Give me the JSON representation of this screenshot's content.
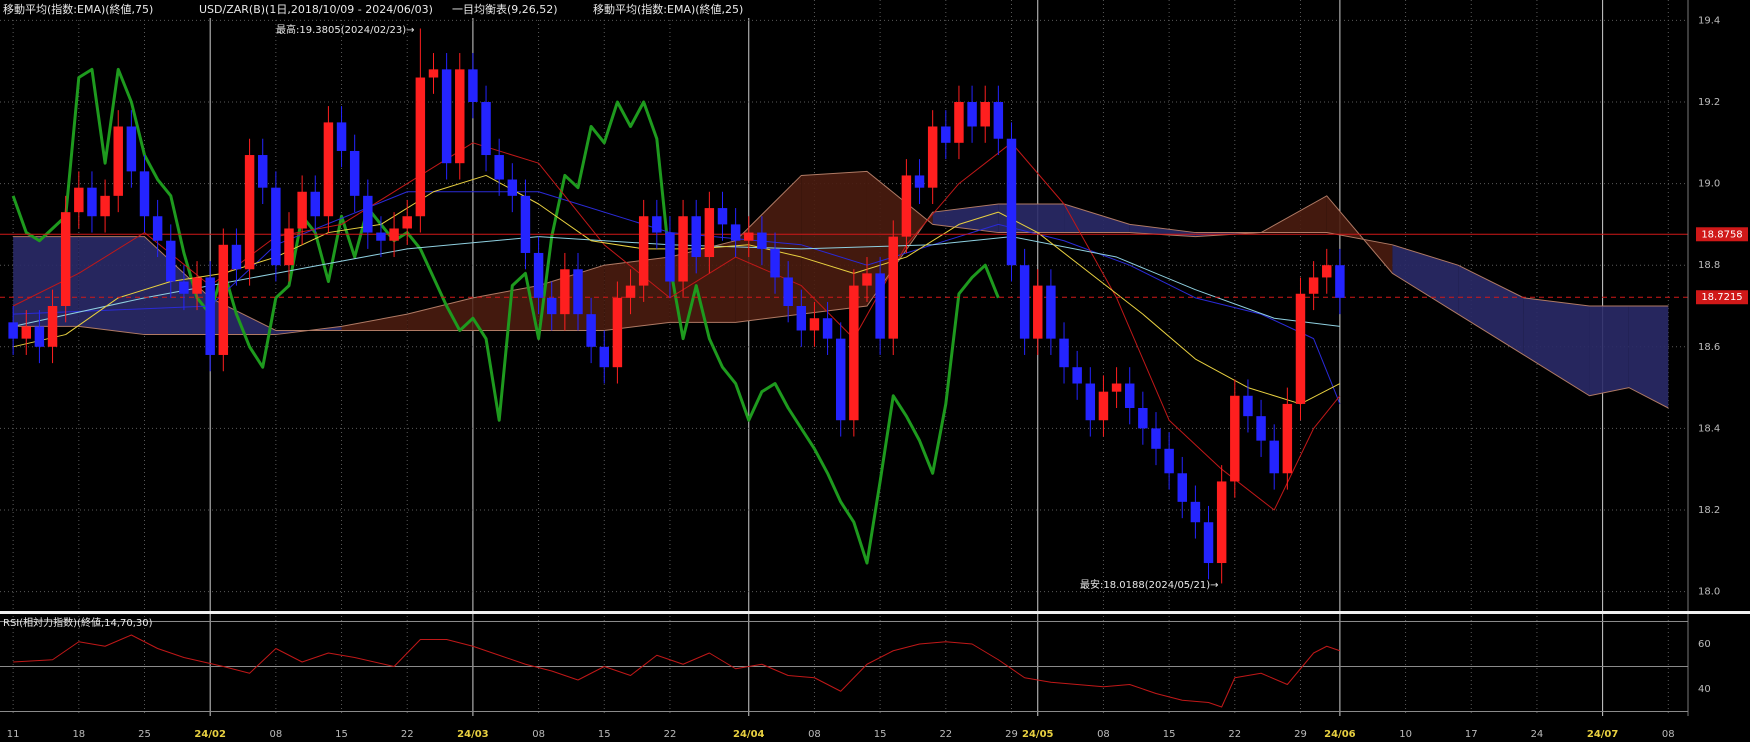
{
  "chart_data": [
    {
      "type": "candlestick",
      "title": "USD/ZAR(B)(1日,2018/10/09 - 2024/06/03)",
      "indicators": [
        "移動平均(指数:EMA)(終値,75)",
        "一目均衡表(9,26,52)",
        "移動平均(指数:EMA)(終値,25)"
      ],
      "open": [
        18.66,
        18.62,
        18.65,
        18.6,
        18.7,
        18.93,
        18.99,
        18.92,
        18.97,
        19.14,
        19.03,
        18.92,
        18.86,
        18.76,
        18.73,
        18.77,
        18.58,
        18.85,
        18.79,
        19.07,
        18.99,
        18.8,
        18.89,
        18.98,
        18.92,
        19.15,
        19.08,
        18.97,
        18.88,
        18.86,
        18.89,
        18.92,
        19.26,
        19.28,
        19.05,
        19.28,
        19.2,
        19.07,
        19.01,
        18.97,
        18.83,
        18.72,
        18.68,
        18.79,
        18.68,
        18.6,
        18.55,
        18.72,
        18.75,
        18.92,
        18.88,
        18.76,
        18.92,
        18.82,
        18.94,
        18.9,
        18.86,
        18.88,
        18.84,
        18.77,
        18.7,
        18.64,
        18.67,
        18.62,
        18.42,
        18.75,
        18.78,
        18.62,
        18.87,
        19.02,
        18.99,
        19.14,
        19.1,
        19.2,
        19.14,
        19.2,
        19.11,
        18.8,
        18.62,
        18.75,
        18.62,
        18.55,
        18.51,
        18.42,
        18.49,
        18.51,
        18.45,
        18.4,
        18.35,
        18.29,
        18.22,
        18.17,
        18.07,
        18.27,
        18.48,
        18.43,
        18.37,
        18.29,
        18.46,
        18.73,
        18.77,
        18.8
      ],
      "high": [
        18.7,
        18.69,
        18.69,
        18.74,
        18.97,
        19.03,
        19.03,
        19.01,
        19.18,
        19.18,
        19.07,
        18.96,
        18.9,
        18.8,
        18.81,
        18.81,
        18.89,
        18.89,
        19.11,
        19.11,
        19.03,
        18.93,
        19.02,
        19.02,
        19.19,
        19.19,
        19.12,
        19.01,
        18.92,
        18.93,
        18.96,
        19.38,
        19.32,
        19.32,
        19.32,
        19.32,
        19.24,
        19.11,
        19.05,
        19.01,
        18.87,
        18.76,
        18.83,
        18.83,
        18.72,
        18.64,
        18.76,
        18.79,
        18.96,
        18.96,
        18.92,
        18.96,
        18.96,
        18.98,
        18.98,
        18.94,
        18.92,
        18.92,
        18.88,
        18.81,
        18.74,
        18.71,
        18.71,
        18.66,
        18.79,
        18.82,
        18.82,
        18.91,
        19.06,
        19.06,
        19.18,
        19.18,
        19.24,
        19.24,
        19.24,
        19.24,
        19.15,
        18.84,
        18.79,
        18.79,
        18.66,
        18.59,
        18.55,
        18.53,
        18.55,
        18.55,
        18.49,
        18.44,
        18.39,
        18.33,
        18.26,
        18.21,
        18.31,
        18.52,
        18.52,
        18.47,
        18.41,
        18.5,
        18.77,
        18.81,
        18.84,
        18.84
      ],
      "low": [
        18.58,
        18.58,
        18.56,
        18.56,
        18.66,
        18.89,
        18.88,
        18.88,
        18.93,
        18.99,
        18.88,
        18.82,
        18.72,
        18.69,
        18.69,
        18.54,
        18.54,
        18.75,
        18.75,
        18.95,
        18.76,
        18.76,
        18.85,
        18.88,
        18.88,
        19.04,
        18.93,
        18.84,
        18.82,
        18.82,
        18.85,
        18.88,
        19.22,
        19.01,
        19.01,
        19.16,
        19.03,
        18.97,
        18.93,
        18.79,
        18.68,
        18.64,
        18.64,
        18.64,
        18.56,
        18.51,
        18.51,
        18.68,
        18.71,
        18.84,
        18.72,
        18.72,
        18.78,
        18.78,
        18.86,
        18.82,
        18.82,
        18.8,
        18.73,
        18.66,
        18.6,
        18.6,
        18.58,
        18.38,
        18.38,
        18.71,
        18.58,
        18.58,
        18.83,
        18.95,
        18.95,
        19.06,
        19.06,
        19.1,
        19.1,
        19.07,
        18.76,
        18.58,
        18.58,
        18.58,
        18.51,
        18.47,
        18.38,
        18.38,
        18.45,
        18.41,
        18.36,
        18.31,
        18.25,
        18.18,
        18.13,
        18.03,
        18.02,
        18.23,
        18.39,
        18.33,
        18.25,
        18.25,
        18.42,
        18.69,
        18.73,
        18.68
      ],
      "close": [
        18.62,
        18.65,
        18.6,
        18.7,
        18.93,
        18.99,
        18.92,
        18.97,
        19.14,
        19.03,
        18.92,
        18.86,
        18.76,
        18.73,
        18.77,
        18.58,
        18.85,
        18.79,
        19.07,
        18.99,
        18.8,
        18.89,
        18.98,
        18.92,
        19.15,
        19.08,
        18.97,
        18.88,
        18.86,
        18.89,
        18.92,
        19.26,
        19.28,
        19.05,
        19.28,
        19.2,
        19.07,
        19.01,
        18.97,
        18.83,
        18.72,
        18.68,
        18.79,
        18.68,
        18.6,
        18.55,
        18.72,
        18.75,
        18.92,
        18.88,
        18.76,
        18.92,
        18.82,
        18.94,
        18.9,
        18.86,
        18.88,
        18.84,
        18.77,
        18.7,
        18.64,
        18.67,
        18.62,
        18.42,
        18.75,
        18.78,
        18.62,
        18.87,
        19.02,
        18.99,
        19.14,
        19.1,
        19.2,
        19.14,
        19.2,
        19.11,
        18.8,
        18.62,
        18.75,
        18.62,
        18.55,
        18.51,
        18.42,
        18.49,
        18.51,
        18.45,
        18.4,
        18.35,
        18.29,
        18.22,
        18.17,
        18.07,
        18.27,
        18.48,
        18.43,
        18.37,
        18.29,
        18.46,
        18.73,
        18.77,
        18.8,
        18.72
      ],
      "up_color": "#ff1f1f",
      "down_color": "#2424ff",
      "cloud": {
        "x": [
          0,
          5,
          10,
          15,
          20,
          25,
          30,
          35,
          40,
          45,
          50,
          55,
          60,
          65,
          70,
          75,
          80,
          85,
          90,
          95,
          100,
          105,
          110,
          115,
          120,
          123,
          126
        ],
        "span_a": [
          18.65,
          18.65,
          18.63,
          18.63,
          18.63,
          18.65,
          18.68,
          18.72,
          18.75,
          18.8,
          18.82,
          18.86,
          19.02,
          19.03,
          18.9,
          18.88,
          18.88,
          18.88,
          18.87,
          18.88,
          18.97,
          18.78,
          18.68,
          18.58,
          18.48,
          18.5,
          18.45
        ],
        "span_b": [
          18.87,
          18.87,
          18.87,
          18.72,
          18.64,
          18.64,
          18.64,
          18.64,
          18.64,
          18.64,
          18.66,
          18.66,
          18.68,
          18.7,
          18.93,
          18.95,
          18.95,
          18.9,
          18.88,
          18.88,
          18.88,
          18.85,
          18.8,
          18.72,
          18.7,
          18.7,
          18.7
        ],
        "up_color": "#4a1c10",
        "down_color": "#2a2a68",
        "edge_color": "#b07a64"
      },
      "overlays": [
        {
          "color": "#1e9a1e",
          "width": 3,
          "values": [
            18.97,
            18.88,
            18.86,
            18.89,
            18.92,
            19.26,
            19.28,
            19.05,
            19.28,
            19.2,
            19.07,
            19.01,
            18.97,
            18.83,
            18.72,
            18.68,
            18.79,
            18.68,
            18.6,
            18.55,
            18.72,
            18.75,
            18.92,
            18.88,
            18.76,
            18.92,
            18.82,
            18.94,
            18.9,
            18.86,
            18.88,
            18.84,
            18.77,
            18.7,
            18.64,
            18.67,
            18.62,
            18.42,
            18.75,
            18.78,
            18.62,
            18.87,
            19.02,
            18.99,
            19.14,
            19.1,
            19.2,
            19.14,
            19.2,
            19.11,
            18.8,
            18.62,
            18.75,
            18.62,
            18.55,
            18.51,
            18.42,
            18.49,
            18.51,
            18.45,
            18.4,
            18.35,
            18.29,
            18.22,
            18.17,
            18.07,
            18.27,
            18.48,
            18.43,
            18.37,
            18.29,
            18.46,
            18.73,
            18.77,
            18.8,
            18.72,
            null,
            null,
            null,
            null,
            null,
            null,
            null,
            null,
            null,
            null,
            null,
            null,
            null,
            null,
            null,
            null,
            null,
            null,
            null,
            null,
            null,
            null,
            null,
            null,
            null,
            null
          ]
        },
        {
          "color": "#2a2ad8",
          "width": 1,
          "x": [
            0,
            15,
            20,
            30,
            40,
            50,
            60,
            65,
            70,
            75,
            80,
            85,
            90,
            95,
            99,
            101
          ],
          "values": [
            18.68,
            18.7,
            18.85,
            18.98,
            18.98,
            18.88,
            18.85,
            18.8,
            18.85,
            18.9,
            18.86,
            18.8,
            18.72,
            18.68,
            18.62,
            18.46
          ]
        },
        {
          "color": "#c01818",
          "width": 1,
          "x": [
            0,
            5,
            10,
            15,
            20,
            25,
            30,
            35,
            40,
            45,
            50,
            55,
            60,
            64,
            68,
            72,
            76,
            80,
            84,
            88,
            92,
            96,
            99,
            101
          ],
          "values": [
            18.7,
            18.78,
            18.88,
            18.75,
            18.87,
            18.9,
            19.0,
            19.1,
            19.05,
            18.85,
            18.72,
            18.82,
            18.75,
            18.62,
            18.85,
            19.0,
            19.1,
            18.95,
            18.72,
            18.42,
            18.3,
            18.2,
            18.4,
            18.48
          ]
        },
        {
          "color": "#8fd0e0",
          "width": 1,
          "x": [
            0,
            10,
            20,
            30,
            40,
            50,
            60,
            70,
            76,
            84,
            90,
            96,
            101
          ],
          "values": [
            18.65,
            18.72,
            18.78,
            18.84,
            18.87,
            18.85,
            18.84,
            18.85,
            18.87,
            18.82,
            18.74,
            18.67,
            18.65
          ]
        },
        {
          "color": "#e8d040",
          "width": 1,
          "x": [
            0,
            4,
            8,
            12,
            16,
            20,
            24,
            28,
            32,
            36,
            40,
            44,
            48,
            52,
            56,
            60,
            64,
            68,
            72,
            75,
            78,
            82,
            86,
            90,
            94,
            98,
            101
          ],
          "values": [
            18.6,
            18.63,
            18.72,
            18.76,
            18.78,
            18.82,
            18.88,
            18.9,
            18.98,
            19.02,
            18.95,
            18.86,
            18.84,
            18.84,
            18.85,
            18.82,
            18.78,
            18.82,
            18.9,
            18.93,
            18.88,
            18.78,
            18.68,
            18.57,
            18.5,
            18.46,
            18.51
          ]
        }
      ],
      "xlim": [
        -1,
        127.5
      ],
      "xticks": [
        {
          "value": 0,
          "label": "11"
        },
        {
          "value": 5,
          "label": "18"
        },
        {
          "value": 10,
          "label": "25"
        },
        {
          "value": 15,
          "label": "24/02"
        },
        {
          "value": 20,
          "label": "08"
        },
        {
          "value": 25,
          "label": "15"
        },
        {
          "value": 30,
          "label": "22"
        },
        {
          "value": 35,
          "label": "24/03"
        },
        {
          "value": 40,
          "label": "08"
        },
        {
          "value": 45,
          "label": "15"
        },
        {
          "value": 50,
          "label": "22"
        },
        {
          "value": 56,
          "label": "24/04"
        },
        {
          "value": 61,
          "label": "08"
        },
        {
          "value": 66,
          "label": "15"
        },
        {
          "value": 71,
          "label": "22"
        },
        {
          "value": 76,
          "label": "29"
        },
        {
          "value": 78,
          "label": "24/05"
        },
        {
          "value": 83,
          "label": "08"
        },
        {
          "value": 88,
          "label": "15"
        },
        {
          "value": 93,
          "label": "22"
        },
        {
          "value": 98,
          "label": "29"
        },
        {
          "value": 101,
          "label": "24/06"
        },
        {
          "value": 106,
          "label": "10"
        },
        {
          "value": 111,
          "label": "17"
        },
        {
          "value": 116,
          "label": "24"
        },
        {
          "value": 121,
          "label": "24/07"
        },
        {
          "value": 126,
          "label": "08"
        }
      ],
      "ylim": [
        17.95,
        19.45
      ],
      "yticks": [
        {
          "value": 18.0,
          "label": "18.0"
        },
        18.2,
        18.4,
        18.6,
        18.8,
        {
          "value": 19.0,
          "label": "19.0"
        },
        19.2,
        19.4
      ],
      "grid": true,
      "hlines": [
        {
          "value": 18.8758,
          "style": "solid"
        },
        {
          "value": 18.7215,
          "style": "dashed"
        }
      ],
      "hline_color": "#d01818",
      "annotations": [
        "最高:19.3805(2024/02/23)→",
        "最安:18.0188(2024/05/21)→"
      ]
    },
    {
      "type": "line",
      "title": "RSI(相対力指数)(終値,14,70,30)",
      "x": [
        0,
        3,
        5,
        7,
        9,
        11,
        13,
        16,
        18,
        20,
        22,
        24,
        26,
        29,
        31,
        33,
        35,
        37,
        39,
        41,
        43,
        45,
        47,
        49,
        51,
        53,
        55,
        57,
        59,
        61,
        63,
        65,
        67,
        69,
        71,
        73,
        75,
        77,
        79,
        81,
        83,
        85,
        87,
        89,
        91,
        92,
        93,
        95,
        97,
        99,
        100,
        101
      ],
      "values": [
        52,
        53,
        61,
        59,
        64,
        58,
        54,
        50,
        47,
        58,
        52,
        56,
        54,
        50,
        62,
        62,
        59,
        55,
        51,
        48,
        44,
        50,
        46,
        55,
        51,
        56,
        49,
        51,
        46,
        45,
        39,
        51,
        57,
        60,
        61,
        60,
        53,
        45,
        43,
        42,
        41,
        42,
        38,
        35,
        34,
        32,
        45,
        47,
        42,
        56,
        59,
        57
      ],
      "color": "#c01818",
      "ylim": [
        28,
        72
      ],
      "yticks": [
        40,
        60
      ],
      "hlines": [
        70,
        50,
        30
      ]
    }
  ]
}
